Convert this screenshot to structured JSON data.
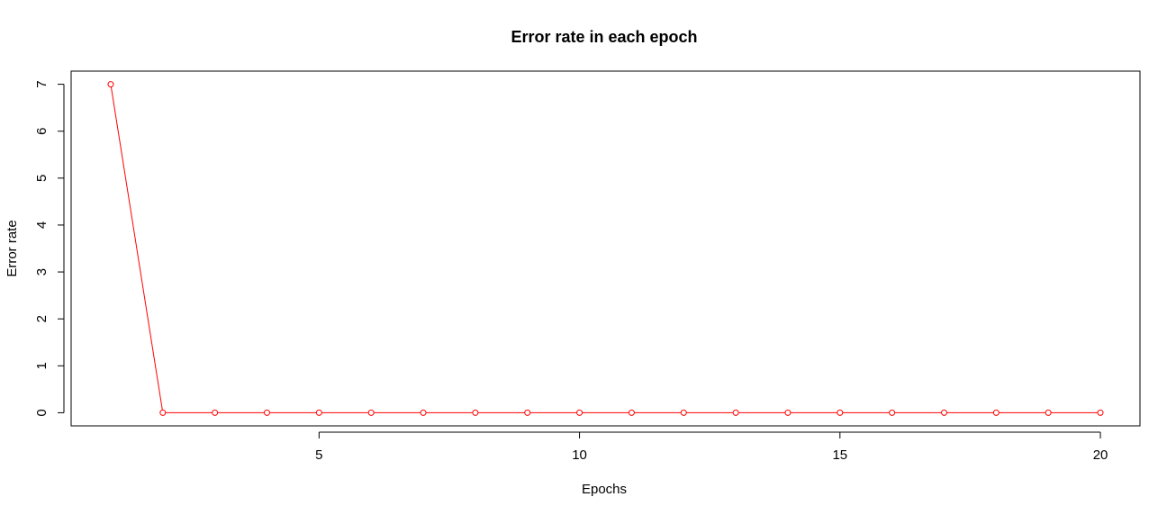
{
  "chart_data": {
    "type": "line",
    "title": "Error rate in each epoch",
    "xlabel": "Epochs",
    "ylabel": "Error rate",
    "x": [
      1,
      2,
      3,
      4,
      5,
      6,
      7,
      8,
      9,
      10,
      11,
      12,
      13,
      14,
      15,
      16,
      17,
      18,
      19,
      20
    ],
    "series": [
      {
        "values": [
          7,
          0,
          0,
          0,
          0,
          0,
          0,
          0,
          0,
          0,
          0,
          0,
          0,
          0,
          0,
          0,
          0,
          0,
          0,
          0
        ],
        "color": "#ff0000",
        "marker": "open-circle"
      }
    ],
    "xlim": [
      0.24,
      20.76
    ],
    "ylim": [
      -0.28,
      7.28
    ],
    "xticks": [
      5,
      10,
      15,
      20
    ],
    "yticks": [
      0,
      1,
      2,
      3,
      4,
      5,
      6,
      7
    ],
    "grid": false,
    "legend": "none"
  }
}
